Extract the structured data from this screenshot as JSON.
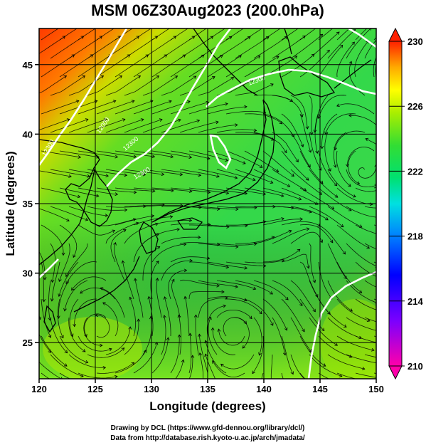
{
  "title": "MSM 06Z30Aug2023 (200.0hPa)",
  "map": {
    "xlabel": "Longitude (degrees)",
    "ylabel": "Latitude  (degrees)",
    "lon_range": [
      120,
      150
    ],
    "lat_range": [
      22.4,
      47.6
    ],
    "x_ticks": [
      120,
      125,
      130,
      135,
      140,
      145,
      150
    ],
    "y_ticks": [
      25,
      30,
      35,
      40,
      45
    ],
    "x_tick_labels": [
      "120",
      "125",
      "130",
      "135",
      "140",
      "145",
      "150"
    ],
    "y_tick_labels": [
      "25",
      "30",
      "35",
      "40",
      "45"
    ],
    "grid": true,
    "field": "temperature shading with streamlines and white height contours",
    "contour_labels": [
      "12300",
      "12000",
      "12300",
      "12300",
      "12300"
    ]
  },
  "colorbar": {
    "min": 210,
    "max": 230,
    "tick_values": [
      230,
      226,
      222,
      218,
      214,
      210
    ],
    "tick_labels": [
      "230",
      "226",
      "222",
      "218",
      "214",
      "210"
    ],
    "colors": [
      "#ff00aa",
      "#0000ff",
      "#00ffff",
      "#00e060",
      "#80ff00",
      "#ffff00",
      "#ffaa00",
      "#ff3000"
    ]
  },
  "credits": {
    "line1": "Drawing by DCL (https://www.gfd-dennou.org/library/dcl/)",
    "line2": "Data from http://database.rish.kyoto-u.ac.jp/arch/jmadata/"
  }
}
